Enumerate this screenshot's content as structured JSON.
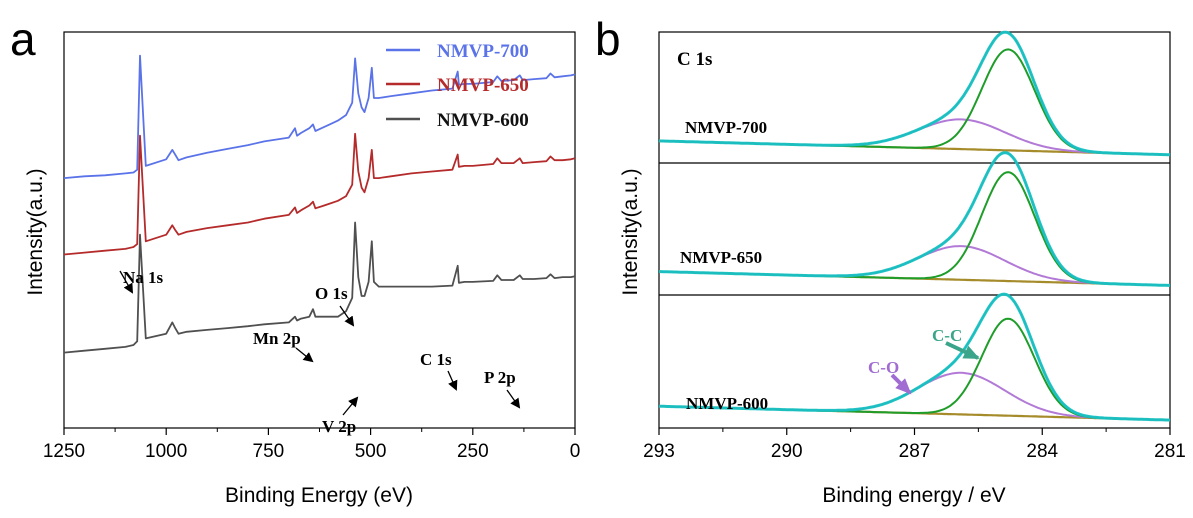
{
  "chart_data": [
    {
      "panel": "a",
      "type": "line",
      "xlabel": "Binding Energy (eV)",
      "ylabel": "Intensity(a.u.)",
      "xlim": [
        1250,
        0
      ],
      "x_reversed": true,
      "xticks": [
        "1250",
        "1000",
        "750",
        "500",
        "250",
        "0"
      ],
      "grid": false,
      "legend_position": "top-right",
      "series": [
        {
          "name": "NMVP-700",
          "color": "#5b73e8",
          "x": [
            1250,
            1200,
            1150,
            1100,
            1080,
            1071,
            1064,
            1050,
            1000,
            985,
            978,
            970,
            950,
            900,
            850,
            800,
            760,
            700,
            685,
            680,
            670,
            650,
            641,
            635,
            620,
            600,
            580,
            560,
            545,
            538,
            530,
            522,
            515,
            505,
            497,
            492,
            480,
            450,
            400,
            350,
            300,
            287,
            284,
            270,
            250,
            200,
            190,
            180,
            150,
            135,
            128,
            100,
            70,
            60,
            50,
            30,
            10,
            0
          ],
          "y": [
            265,
            267,
            268,
            270,
            271,
            274,
            395,
            278,
            285,
            295,
            290,
            284,
            287,
            292,
            296,
            300,
            304,
            308,
            318,
            310,
            313,
            318,
            322,
            315,
            318,
            322,
            326,
            332,
            345,
            392,
            355,
            340,
            335,
            350,
            382,
            350,
            350,
            352,
            355,
            358,
            360,
            378,
            364,
            365,
            365,
            367,
            373,
            368,
            369,
            374,
            369,
            370,
            371,
            376,
            372,
            373,
            374,
            375
          ]
        },
        {
          "name": "NMVP-650",
          "color": "#b52b2b",
          "x": [
            1250,
            1200,
            1150,
            1100,
            1080,
            1071,
            1064,
            1050,
            1000,
            985,
            978,
            970,
            950,
            900,
            850,
            800,
            760,
            700,
            685,
            680,
            670,
            650,
            641,
            635,
            620,
            600,
            580,
            560,
            545,
            538,
            530,
            522,
            515,
            505,
            497,
            492,
            480,
            450,
            400,
            350,
            300,
            287,
            284,
            270,
            250,
            200,
            190,
            180,
            150,
            135,
            128,
            100,
            70,
            60,
            50,
            30,
            10,
            0
          ],
          "y": [
            184,
            186,
            188,
            190,
            192,
            195,
            310,
            198,
            205,
            215,
            210,
            205,
            208,
            212,
            215,
            218,
            222,
            226,
            234,
            228,
            231,
            236,
            240,
            233,
            235,
            238,
            241,
            246,
            258,
            312,
            272,
            255,
            250,
            265,
            295,
            265,
            265,
            267,
            270,
            272,
            274,
            290,
            277,
            278,
            278,
            280,
            286,
            281,
            281,
            286,
            281,
            282,
            283,
            288,
            284,
            284,
            285,
            286
          ]
        },
        {
          "name": "NMVP-600",
          "color": "#505050",
          "x": [
            1250,
            1200,
            1150,
            1100,
            1080,
            1071,
            1064,
            1050,
            1000,
            985,
            978,
            970,
            950,
            900,
            850,
            800,
            760,
            700,
            685,
            680,
            670,
            650,
            641,
            635,
            620,
            600,
            580,
            560,
            545,
            538,
            530,
            522,
            515,
            505,
            497,
            492,
            480,
            450,
            400,
            350,
            300,
            287,
            284,
            270,
            250,
            200,
            190,
            180,
            150,
            135,
            128,
            100,
            70,
            60,
            50,
            30,
            10,
            0
          ],
          "y": [
            80,
            82,
            84,
            86,
            88,
            92,
            205,
            95,
            100,
            112,
            106,
            100,
            102,
            104,
            106,
            108,
            110,
            112,
            118,
            114,
            116,
            118,
            126,
            118,
            118,
            118,
            118,
            124,
            138,
            218,
            160,
            140,
            140,
            155,
            198,
            155,
            150,
            150,
            150,
            150,
            151,
            172,
            154,
            155,
            155,
            156,
            162,
            157,
            157,
            162,
            158,
            158,
            159,
            163,
            159,
            160,
            160,
            161
          ]
        }
      ],
      "annotations": [
        {
          "text": "Na 1s",
          "x": 1071
        },
        {
          "text": "Mn 2p",
          "x": 641
        },
        {
          "text": "O 1s",
          "x": 530
        },
        {
          "text": "V 2p",
          "x": 517
        },
        {
          "text": "C 1s",
          "x": 285
        },
        {
          "text": "P 2p",
          "x": 133
        }
      ]
    },
    {
      "panel": "b",
      "type": "line",
      "title": "C 1s",
      "xlabel": "Binding energy / eV",
      "ylabel": "Intensity(a.u.)",
      "xlim": [
        293,
        281
      ],
      "x_reversed": true,
      "xticks": [
        "293",
        "290",
        "287",
        "284",
        "281"
      ],
      "grid": false,
      "samples": [
        {
          "label": "NMVP-700",
          "base": 0.27,
          "cc_amp": 0.255,
          "co_amp": 0.075
        },
        {
          "label": "NMVP-650",
          "base": -0.06,
          "cc_amp": 0.275,
          "co_amp": 0.085
        },
        {
          "label": "NMVP-600",
          "base": -0.4,
          "cc_amp": 0.245,
          "co_amp": 0.105
        }
      ],
      "components": [
        {
          "name": "C-C",
          "center": 284.8,
          "fwhm": 1.45,
          "color": "#1f9d2a"
        },
        {
          "name": "C-O",
          "center": 285.9,
          "fwhm": 2.4,
          "color": "#b27ad6"
        }
      ],
      "envelope_color": "#19c2c2",
      "background_color": "#a58b2a",
      "data_color": "#3d5fae",
      "background_slope": 0.035,
      "peak_labels": [
        {
          "text": "C-C",
          "color": "#3aa58a"
        },
        {
          "text": "C-O",
          "color": "#a06cd2"
        }
      ]
    }
  ],
  "panels": {
    "a_letter": "a",
    "b_letter": "b"
  }
}
